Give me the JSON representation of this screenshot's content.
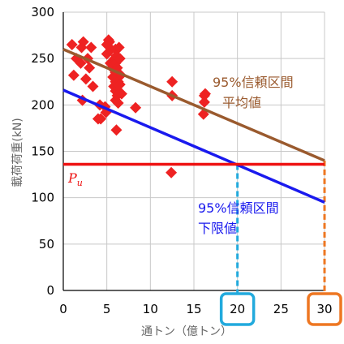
{
  "chart_data": {
    "type": "scatter",
    "xlabel": "通トン（億トン）",
    "ylabel": "載荷荷重(kN)",
    "xlim": [
      0,
      30
    ],
    "ylim": [
      0,
      300
    ],
    "x_ticks": [
      "0",
      "5",
      "10",
      "15",
      "20",
      "25",
      "30"
    ],
    "y_ticks": [
      "0",
      "50",
      "100",
      "150",
      "200",
      "250",
      "300"
    ],
    "grid": true,
    "colors": {
      "points": "#ee2222",
      "mean_line": "#9a5a2e",
      "lower_line": "#1a1aee",
      "pu_line": "#ee1111",
      "box20": "#22aadd",
      "box30": "#ee7722"
    },
    "series": [
      {
        "type": "scatter",
        "points": [
          [
            1.0,
            265
          ],
          [
            1.2,
            232
          ],
          [
            1.5,
            250
          ],
          [
            2.0,
            245
          ],
          [
            2.1,
            262
          ],
          [
            2.3,
            268
          ],
          [
            2.2,
            205
          ],
          [
            2.6,
            228
          ],
          [
            2.8,
            250
          ],
          [
            3.0,
            240
          ],
          [
            3.2,
            262
          ],
          [
            3.4,
            220
          ],
          [
            4.0,
            185
          ],
          [
            4.2,
            200
          ],
          [
            4.3,
            185
          ],
          [
            4.8,
            198
          ],
          [
            4.9,
            192
          ],
          [
            5.0,
            255
          ],
          [
            5.0,
            265
          ],
          [
            5.2,
            270
          ],
          [
            5.3,
            268
          ],
          [
            5.4,
            245
          ],
          [
            5.5,
            260
          ],
          [
            5.6,
            240
          ],
          [
            5.7,
            230
          ],
          [
            5.8,
            220
          ],
          [
            5.9,
            250
          ],
          [
            6.0,
            205
          ],
          [
            6.0,
            215
          ],
          [
            6.0,
            225
          ],
          [
            6.0,
            235
          ],
          [
            6.0,
            245
          ],
          [
            6.0,
            260
          ],
          [
            6.1,
            253
          ],
          [
            6.2,
            240
          ],
          [
            6.2,
            210
          ],
          [
            6.3,
            225
          ],
          [
            6.3,
            202
          ],
          [
            6.4,
            262
          ],
          [
            6.5,
            250
          ],
          [
            6.5,
            222
          ],
          [
            6.6,
            232
          ],
          [
            6.7,
            212
          ],
          [
            6.1,
            173
          ],
          [
            8.3,
            197
          ],
          [
            12.4,
            127
          ],
          [
            12.5,
            210
          ],
          [
            12.5,
            225
          ],
          [
            16.1,
            190
          ],
          [
            16.2,
            203
          ],
          [
            16.2,
            210
          ],
          [
            16.3,
            212
          ]
        ]
      },
      {
        "type": "line",
        "points": [
          [
            0,
            260
          ],
          [
            30,
            140
          ]
        ]
      },
      {
        "type": "line",
        "points": [
          [
            0,
            216
          ],
          [
            30,
            95
          ]
        ]
      },
      {
        "type": "line",
        "points": [
          [
            0,
            136
          ],
          [
            30,
            136
          ]
        ]
      }
    ],
    "annotations": {
      "mean_label_line1": "95%信頼区間",
      "mean_label_line2": "平均値",
      "lower_label_line1": "95%信頼区間",
      "lower_label_line2": "下限値",
      "pu_label": "P",
      "pu_subscript": "u"
    },
    "highlighted_x": [
      {
        "x": 20,
        "y": 136,
        "label": "20"
      },
      {
        "x": 30,
        "y": 140,
        "label": "30"
      }
    ]
  }
}
